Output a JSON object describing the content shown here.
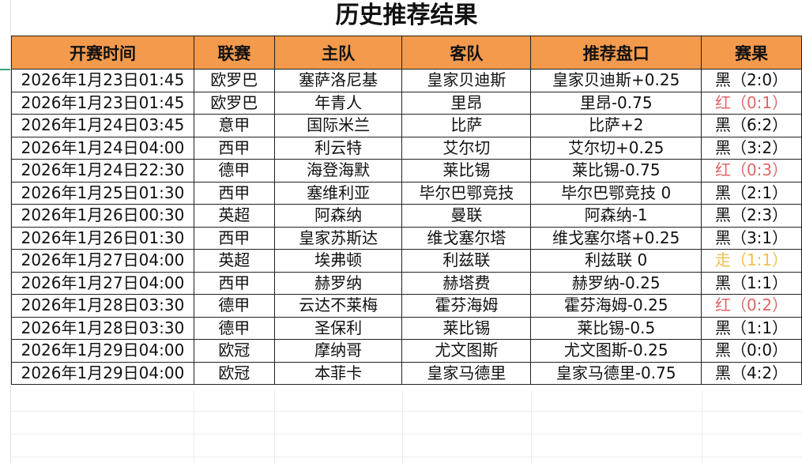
{
  "title": "历史推荐结果",
  "columns": [
    "开赛时间",
    "联赛",
    "主队",
    "客队",
    "推荐盘口",
    "赛果"
  ],
  "result_colors": {
    "黑": "#111111",
    "红": "#e06666",
    "走": "#f1c04a"
  },
  "header_color": "#f39a4c",
  "rows": [
    {
      "time": "2026年1月23日01:45",
      "league": "欧罗巴",
      "home": "塞萨洛尼基",
      "away": "皇家贝迪斯",
      "pick": "皇家贝迪斯+0.25",
      "result": "黑（2:0）",
      "status": "black"
    },
    {
      "time": "2026年1月23日01:45",
      "league": "欧罗巴",
      "home": "年青人",
      "away": "里昂",
      "pick": "里昂-0.75",
      "result": "红（0:1）",
      "status": "red"
    },
    {
      "time": "2026年1月24日03:45",
      "league": "意甲",
      "home": "国际米兰",
      "away": "比萨",
      "pick": "比萨+2",
      "result": "黑（6:2）",
      "status": "black"
    },
    {
      "time": "2026年1月24日04:00",
      "league": "西甲",
      "home": "利云特",
      "away": "艾尔切",
      "pick": "艾尔切+0.25",
      "result": "黑（3:2）",
      "status": "black"
    },
    {
      "time": "2026年1月24日22:30",
      "league": "德甲",
      "home": "海登海默",
      "away": "莱比锡",
      "pick": "莱比锡-0.75",
      "result": "红（0:3）",
      "status": "red"
    },
    {
      "time": "2026年1月25日01:30",
      "league": "西甲",
      "home": "塞维利亚",
      "away": "毕尔巴鄂竞技",
      "pick": "毕尔巴鄂竞技 0",
      "result": "黑（2:1）",
      "status": "black"
    },
    {
      "time": "2026年1月26日00:30",
      "league": "英超",
      "home": "阿森纳",
      "away": "曼联",
      "pick": "阿森纳-1",
      "result": "黑（2:3）",
      "status": "black"
    },
    {
      "time": "2026年1月26日01:30",
      "league": "西甲",
      "home": "皇家苏斯达",
      "away": "维戈塞尔塔",
      "pick": "维戈塞尔塔+0.25",
      "result": "黑（3:1）",
      "status": "black"
    },
    {
      "time": "2026年1月27日04:00",
      "league": "英超",
      "home": "埃弗顿",
      "away": "利兹联",
      "pick": "利兹联 0",
      "result": "走（1:1）",
      "status": "draw"
    },
    {
      "time": "2026年1月27日04:00",
      "league": "西甲",
      "home": "赫罗纳",
      "away": "赫塔费",
      "pick": "赫罗纳-0.25",
      "result": "黑（1:1）",
      "status": "black"
    },
    {
      "time": "2026年1月28日03:30",
      "league": "德甲",
      "home": "云达不莱梅",
      "away": "霍芬海姆",
      "pick": "霍芬海姆-0.25",
      "result": "红（0:2）",
      "status": "red"
    },
    {
      "time": "2026年1月28日03:30",
      "league": "德甲",
      "home": "圣保利",
      "away": "莱比锡",
      "pick": "莱比锡-0.5",
      "result": "黑（1:1）",
      "status": "black"
    },
    {
      "time": "2026年1月29日04:00",
      "league": "欧冠",
      "home": "摩纳哥",
      "away": "尤文图斯",
      "pick": "尤文图斯-0.25",
      "result": "黑（0:0）",
      "status": "black"
    },
    {
      "time": "2026年1月29日04:00",
      "league": "欧冠",
      "home": "本菲卡",
      "away": "皇家马德里",
      "pick": "皇家马德里-0.75",
      "result": "黑（4:2）",
      "status": "black"
    }
  ]
}
